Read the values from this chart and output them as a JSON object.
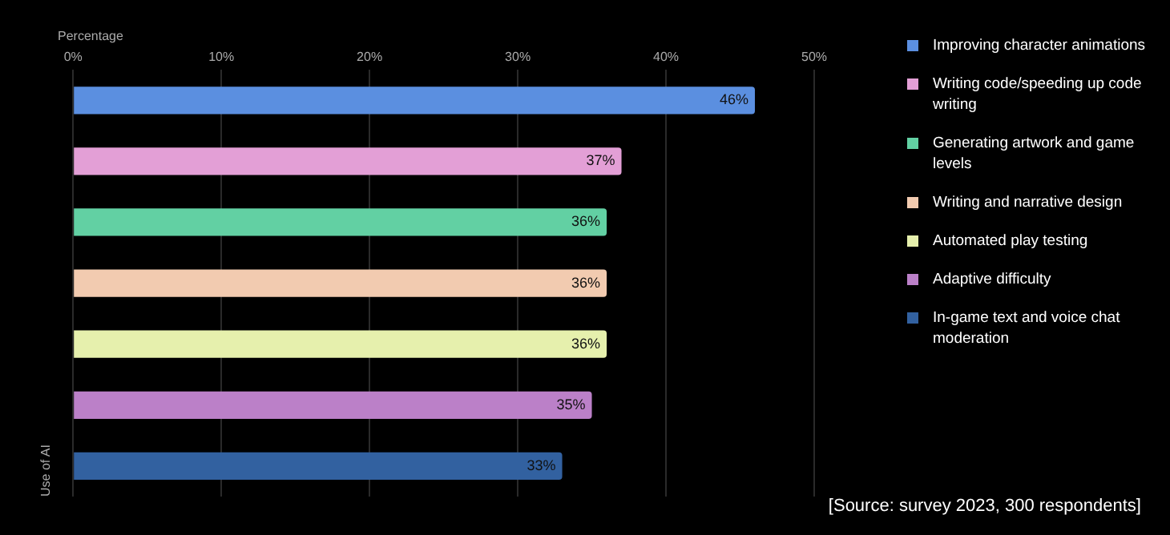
{
  "chart_data": {
    "type": "bar",
    "orientation": "horizontal",
    "xlabel": "Percentage",
    "ylabel": "Use of AI",
    "categories": [
      null,
      null,
      null,
      null,
      null,
      null,
      null
    ],
    "series": [
      {
        "name": "Improving character animations",
        "color": "#5b8fe0",
        "values": [
          46,
          null,
          null,
          null,
          null,
          null,
          null
        ],
        "value_labels": [
          "46%",
          null,
          null,
          null,
          null,
          null,
          null
        ]
      },
      {
        "name": "Writing code/speeding up code writing",
        "color": "#e39fd6",
        "values": [
          null,
          37,
          null,
          null,
          null,
          null,
          null
        ],
        "value_labels": [
          null,
          "37%",
          null,
          null,
          null,
          null,
          null
        ]
      },
      {
        "name": "Generating artwork and game levels",
        "color": "#62d0a3",
        "values": [
          null,
          null,
          36,
          null,
          null,
          null,
          null
        ],
        "value_labels": [
          null,
          null,
          "36%",
          null,
          null,
          null,
          null
        ]
      },
      {
        "name": "Writing and narrative design",
        "color": "#f2cbb0",
        "values": [
          null,
          null,
          null,
          36,
          null,
          null,
          null
        ],
        "value_labels": [
          null,
          null,
          null,
          "36%",
          null,
          null,
          null
        ]
      },
      {
        "name": "Automated play testing",
        "color": "#e6f0ad",
        "values": [
          null,
          null,
          null,
          null,
          36,
          null,
          null
        ],
        "value_labels": [
          null,
          null,
          null,
          null,
          "36%",
          null,
          null
        ]
      },
      {
        "name": "Adaptive difficulty",
        "color": "#bb80c8",
        "values": [
          null,
          null,
          null,
          null,
          null,
          35,
          null
        ],
        "value_labels": [
          null,
          null,
          null,
          null,
          null,
          "35%",
          null
        ]
      },
      {
        "name": "In-game text and voice chat moderation",
        "color": "#3261a0",
        "values": [
          null,
          null,
          null,
          null,
          null,
          null,
          33
        ],
        "value_labels": [
          null,
          null,
          null,
          null,
          null,
          null,
          "33%"
        ]
      }
    ],
    "xlim": [
      0,
      50
    ],
    "xticks": [
      {
        "value": 0,
        "label": "0%"
      },
      {
        "value": 10,
        "label": "10%"
      },
      {
        "value": 20,
        "label": "20%"
      },
      {
        "value": 30,
        "label": "30%"
      },
      {
        "value": 40,
        "label": "40%"
      },
      {
        "value": 50,
        "label": "50%"
      }
    ],
    "grid": "x",
    "legend": "right",
    "annotations": [
      "[Source: survey 2023, 300 respondents]"
    ]
  }
}
